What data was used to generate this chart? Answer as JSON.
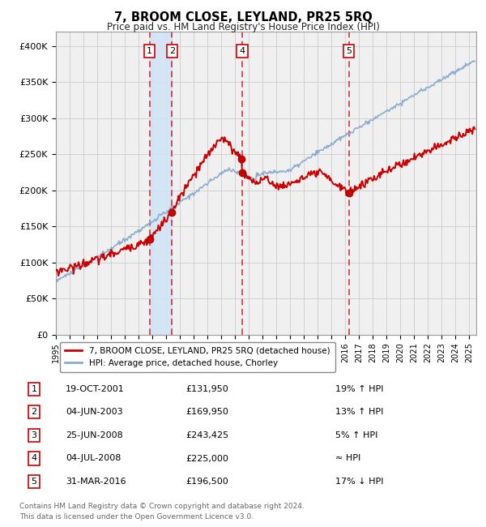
{
  "title": "7, BROOM CLOSE, LEYLAND, PR25 5RQ",
  "subtitle": "Price paid vs. HM Land Registry's House Price Index (HPI)",
  "ylabel_ticks": [
    "£0",
    "£50K",
    "£100K",
    "£150K",
    "£200K",
    "£250K",
    "£300K",
    "£350K",
    "£400K"
  ],
  "ytick_values": [
    0,
    50000,
    100000,
    150000,
    200000,
    250000,
    300000,
    350000,
    400000
  ],
  "ylim": [
    0,
    420000
  ],
  "xlim_start": 1995.0,
  "xlim_end": 2025.5,
  "red_line_color": "#cc0000",
  "blue_line_color": "#88aacc",
  "dot_color": "#cc0000",
  "grid_color": "#cccccc",
  "bg_color": "#ffffff",
  "plot_bg_color": "#f0f0f0",
  "shade_color": "#d0e4f7",
  "dashed_line_color": "#cc0000",
  "legend1": "7, BROOM CLOSE, LEYLAND, PR25 5RQ (detached house)",
  "legend2": "HPI: Average price, detached house, Chorley",
  "transactions": [
    {
      "num": 1,
      "date": "19-OCT-2001",
      "price": 131950,
      "pct": "19%",
      "dir": "↑",
      "year": 2001.8
    },
    {
      "num": 2,
      "date": "04-JUN-2003",
      "price": 169950,
      "pct": "13%",
      "dir": "↑",
      "year": 2003.42
    },
    {
      "num": 3,
      "date": "25-JUN-2008",
      "price": 243425,
      "pct": "5%",
      "dir": "↑",
      "year": 2008.48
    },
    {
      "num": 4,
      "date": "04-JUL-2008",
      "price": 225000,
      "pct": "≈",
      "dir": "",
      "year": 2008.51
    },
    {
      "num": 5,
      "date": "31-MAR-2016",
      "price": 196500,
      "pct": "17%",
      "dir": "↓",
      "year": 2016.25
    }
  ],
  "footnote1": "Contains HM Land Registry data © Crown copyright and database right 2024.",
  "footnote2": "This data is licensed under the Open Government Licence v3.0.",
  "shown_nums": [
    1,
    2,
    4,
    5
  ]
}
